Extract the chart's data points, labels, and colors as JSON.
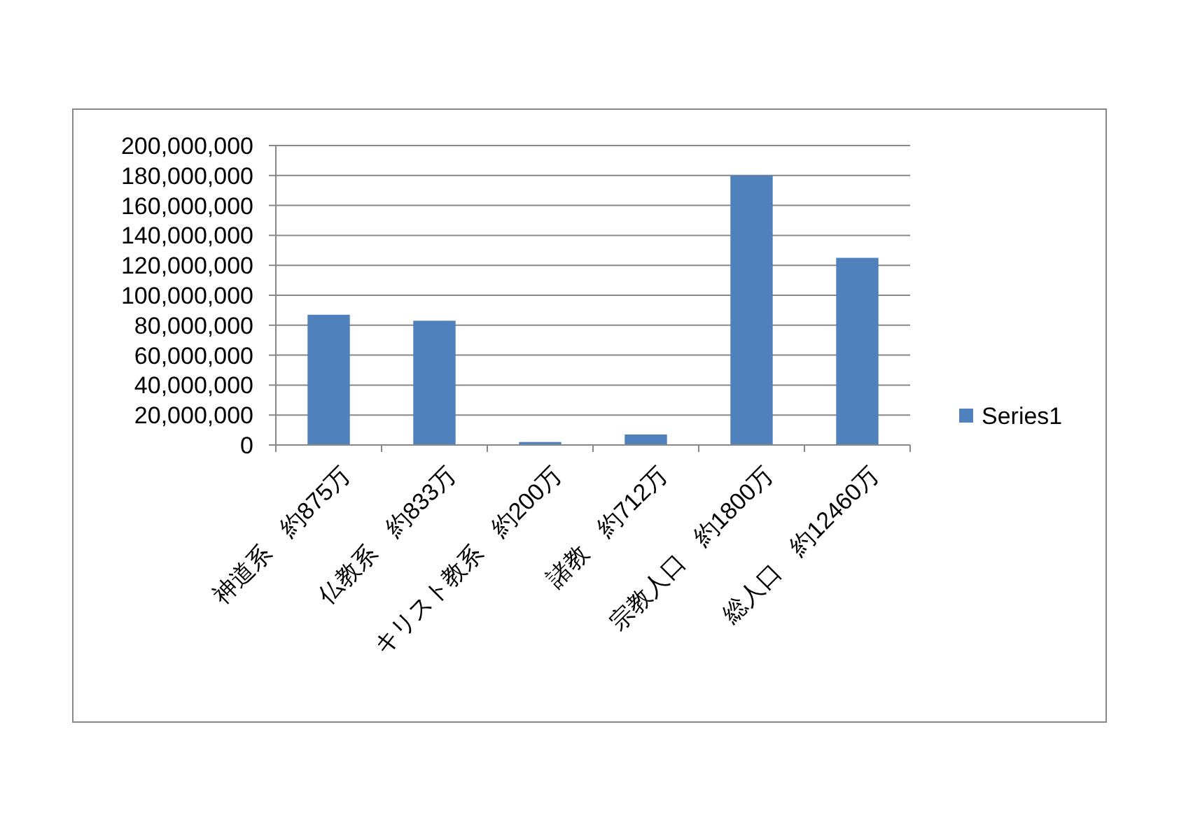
{
  "chart_data": {
    "type": "bar",
    "categories": [
      "神道系　約875万",
      "仏教系　約833万",
      "キリスト教系　約200万",
      "諸教　約712万",
      "宗教人口　約1800万",
      "総人口　約12460万"
    ],
    "series": [
      {
        "name": "Series1",
        "color": "#4f81bd",
        "values": [
          87000000,
          83000000,
          2000000,
          7000000,
          180000000,
          125000000
        ]
      }
    ],
    "ylim": [
      0,
      200000000
    ],
    "yticks": [
      {
        "value": 0,
        "label": "0"
      },
      {
        "value": 20000000,
        "label": "20,000,000"
      },
      {
        "value": 40000000,
        "label": "40,000,000"
      },
      {
        "value": 60000000,
        "label": "60,000,000"
      },
      {
        "value": 80000000,
        "label": "80,000,000"
      },
      {
        "value": 100000000,
        "label": "100,000,000"
      },
      {
        "value": 120000000,
        "label": "120,000,000"
      },
      {
        "value": 140000000,
        "label": "140,000,000"
      },
      {
        "value": 160000000,
        "label": "160,000,000"
      },
      {
        "value": 180000000,
        "label": "180,000,000"
      },
      {
        "value": 200000000,
        "label": "200,000,000"
      }
    ],
    "grid": "y",
    "legend": "right"
  }
}
